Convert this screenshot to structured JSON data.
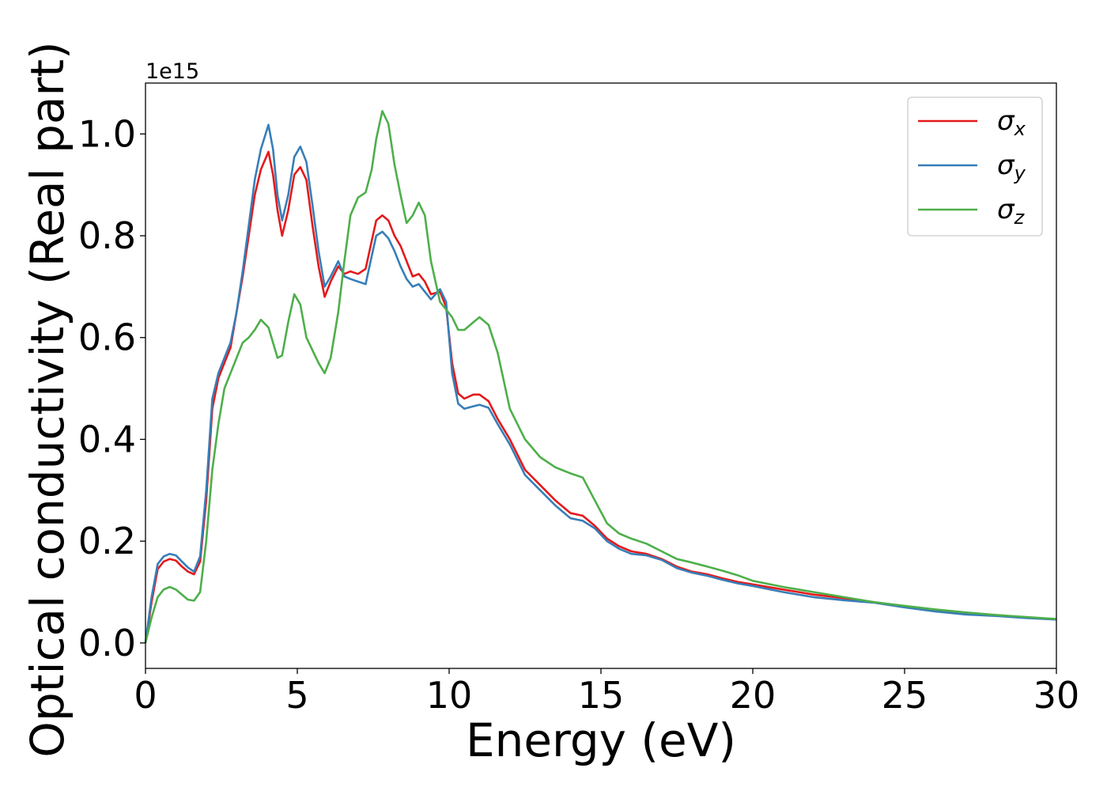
{
  "chart_data": {
    "type": "line",
    "title": "",
    "xlabel": "Energy (eV)",
    "ylabel": "Optical conductivity (Real part)",
    "y_offset_label": "1e15",
    "xlim": [
      0,
      30
    ],
    "ylim": [
      -0.05,
      1.1
    ],
    "xticks": [
      0,
      5,
      10,
      15,
      20,
      25,
      30
    ],
    "xtick_labels": [
      "0",
      "5",
      "10",
      "15",
      "20",
      "25",
      "30"
    ],
    "yticks": [
      0.0,
      0.2,
      0.4,
      0.6,
      0.8,
      1.0
    ],
    "ytick_labels": [
      "0.0",
      "0.2",
      "0.4",
      "0.6",
      "0.8",
      "1.0"
    ],
    "grid": false,
    "legend_position": "top-right",
    "series": [
      {
        "name": "σx",
        "symbol": "σ",
        "subscript": "x",
        "color": "#e41a1c",
        "x": [
          0,
          0.2,
          0.4,
          0.6,
          0.8,
          1.0,
          1.2,
          1.4,
          1.6,
          1.8,
          2.0,
          2.2,
          2.4,
          2.6,
          2.8,
          3.0,
          3.2,
          3.4,
          3.6,
          3.8,
          4.05,
          4.2,
          4.35,
          4.5,
          4.7,
          4.9,
          5.1,
          5.3,
          5.5,
          5.7,
          5.9,
          6.1,
          6.35,
          6.55,
          6.75,
          7.0,
          7.25,
          7.45,
          7.6,
          7.8,
          8.0,
          8.2,
          8.4,
          8.6,
          8.8,
          9.0,
          9.2,
          9.4,
          9.7,
          9.9,
          10.1,
          10.3,
          10.5,
          10.8,
          11.0,
          11.3,
          11.6,
          12.0,
          12.5,
          13.0,
          13.5,
          14.0,
          14.4,
          14.8,
          15.2,
          15.6,
          16.0,
          16.5,
          17.0,
          17.5,
          18.0,
          18.5,
          19.0,
          19.5,
          20.0,
          21.0,
          22.0,
          23.0,
          24.0,
          25.0,
          26.0,
          27.0,
          28.0,
          29.0,
          30.0
        ],
        "y": [
          0.0,
          0.08,
          0.145,
          0.16,
          0.165,
          0.162,
          0.15,
          0.14,
          0.135,
          0.16,
          0.28,
          0.46,
          0.52,
          0.55,
          0.58,
          0.65,
          0.72,
          0.8,
          0.88,
          0.93,
          0.965,
          0.92,
          0.85,
          0.8,
          0.85,
          0.92,
          0.935,
          0.91,
          0.82,
          0.74,
          0.68,
          0.71,
          0.74,
          0.725,
          0.73,
          0.725,
          0.735,
          0.79,
          0.83,
          0.84,
          0.83,
          0.8,
          0.78,
          0.75,
          0.72,
          0.725,
          0.71,
          0.685,
          0.69,
          0.66,
          0.55,
          0.49,
          0.48,
          0.488,
          0.488,
          0.475,
          0.44,
          0.4,
          0.34,
          0.31,
          0.28,
          0.255,
          0.25,
          0.23,
          0.205,
          0.19,
          0.18,
          0.175,
          0.165,
          0.15,
          0.14,
          0.135,
          0.127,
          0.12,
          0.115,
          0.105,
          0.095,
          0.088,
          0.08,
          0.072,
          0.064,
          0.058,
          0.054,
          0.05,
          0.046
        ]
      },
      {
        "name": "σy",
        "symbol": "σ",
        "subscript": "y",
        "color": "#377eb8",
        "x": [
          0,
          0.2,
          0.4,
          0.6,
          0.8,
          1.0,
          1.2,
          1.4,
          1.6,
          1.8,
          2.0,
          2.2,
          2.4,
          2.6,
          2.8,
          3.0,
          3.2,
          3.4,
          3.6,
          3.8,
          4.05,
          4.2,
          4.35,
          4.5,
          4.7,
          4.9,
          5.1,
          5.3,
          5.5,
          5.7,
          5.9,
          6.1,
          6.35,
          6.55,
          6.75,
          7.0,
          7.25,
          7.45,
          7.6,
          7.8,
          8.0,
          8.2,
          8.4,
          8.6,
          8.8,
          9.0,
          9.2,
          9.4,
          9.7,
          9.9,
          10.1,
          10.3,
          10.5,
          10.8,
          11.0,
          11.3,
          11.6,
          12.0,
          12.5,
          13.0,
          13.5,
          14.0,
          14.4,
          14.8,
          15.2,
          15.6,
          16.0,
          16.5,
          17.0,
          17.5,
          18.0,
          18.5,
          19.0,
          19.5,
          20.0,
          21.0,
          22.0,
          23.0,
          24.0,
          25.0,
          26.0,
          27.0,
          28.0,
          29.0,
          30.0
        ],
        "y": [
          0.0,
          0.09,
          0.155,
          0.17,
          0.175,
          0.172,
          0.16,
          0.148,
          0.14,
          0.17,
          0.3,
          0.48,
          0.53,
          0.56,
          0.59,
          0.65,
          0.73,
          0.82,
          0.91,
          0.97,
          1.018,
          0.97,
          0.88,
          0.83,
          0.88,
          0.955,
          0.975,
          0.945,
          0.86,
          0.77,
          0.7,
          0.72,
          0.75,
          0.72,
          0.715,
          0.71,
          0.705,
          0.76,
          0.8,
          0.808,
          0.795,
          0.77,
          0.74,
          0.715,
          0.7,
          0.705,
          0.69,
          0.675,
          0.695,
          0.67,
          0.53,
          0.47,
          0.46,
          0.465,
          0.468,
          0.462,
          0.43,
          0.39,
          0.33,
          0.3,
          0.27,
          0.245,
          0.24,
          0.225,
          0.2,
          0.185,
          0.175,
          0.172,
          0.163,
          0.147,
          0.138,
          0.132,
          0.124,
          0.117,
          0.112,
          0.1,
          0.09,
          0.084,
          0.079,
          0.07,
          0.062,
          0.056,
          0.053,
          0.049,
          0.046
        ]
      },
      {
        "name": "σz",
        "symbol": "σ",
        "subscript": "z",
        "color": "#4daf4a",
        "x": [
          0,
          0.2,
          0.4,
          0.6,
          0.8,
          1.0,
          1.2,
          1.4,
          1.6,
          1.8,
          2.0,
          2.2,
          2.4,
          2.6,
          2.8,
          3.0,
          3.2,
          3.4,
          3.6,
          3.8,
          4.05,
          4.2,
          4.35,
          4.5,
          4.7,
          4.9,
          5.1,
          5.3,
          5.5,
          5.7,
          5.9,
          6.1,
          6.35,
          6.55,
          6.75,
          7.0,
          7.25,
          7.45,
          7.6,
          7.8,
          8.0,
          8.2,
          8.4,
          8.6,
          8.8,
          9.0,
          9.2,
          9.4,
          9.7,
          9.9,
          10.1,
          10.3,
          10.5,
          10.8,
          11.0,
          11.3,
          11.6,
          12.0,
          12.5,
          13.0,
          13.5,
          14.0,
          14.4,
          14.8,
          15.2,
          15.6,
          16.0,
          16.5,
          17.0,
          17.5,
          18.0,
          18.5,
          19.0,
          19.5,
          20.0,
          21.0,
          22.0,
          23.0,
          24.0,
          25.0,
          26.0,
          27.0,
          28.0,
          29.0,
          30.0
        ],
        "y": [
          0.0,
          0.05,
          0.09,
          0.105,
          0.11,
          0.105,
          0.095,
          0.085,
          0.083,
          0.1,
          0.2,
          0.34,
          0.43,
          0.5,
          0.53,
          0.56,
          0.59,
          0.6,
          0.615,
          0.635,
          0.62,
          0.59,
          0.56,
          0.565,
          0.63,
          0.685,
          0.665,
          0.6,
          0.575,
          0.55,
          0.53,
          0.56,
          0.65,
          0.75,
          0.84,
          0.875,
          0.885,
          0.93,
          0.99,
          1.045,
          1.02,
          0.94,
          0.88,
          0.825,
          0.84,
          0.865,
          0.84,
          0.75,
          0.67,
          0.655,
          0.64,
          0.615,
          0.615,
          0.63,
          0.64,
          0.625,
          0.57,
          0.46,
          0.4,
          0.365,
          0.345,
          0.333,
          0.325,
          0.28,
          0.235,
          0.215,
          0.205,
          0.195,
          0.18,
          0.165,
          0.158,
          0.15,
          0.142,
          0.133,
          0.122,
          0.11,
          0.1,
          0.09,
          0.08,
          0.073,
          0.066,
          0.06,
          0.055,
          0.051,
          0.047
        ]
      }
    ]
  }
}
